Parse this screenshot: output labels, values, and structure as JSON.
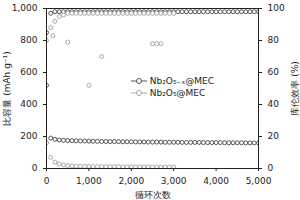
{
  "chart_data": {
    "type": "scatter",
    "xlabel": "循环次数",
    "ylabel": "比容量 (mAh g⁻¹)",
    "y2label": "库伦效率 (%)",
    "xlim": [
      0,
      5000
    ],
    "xticks": [
      0,
      1000,
      2000,
      3000,
      4000,
      5000
    ],
    "ylim": [
      0,
      1000
    ],
    "yticks": [
      0,
      200,
      400,
      600,
      800,
      1000
    ],
    "y2lim": [
      0,
      100
    ],
    "y2ticks": [
      0,
      20,
      40,
      60,
      80,
      100
    ],
    "legend": "center",
    "series": [
      {
        "name": "Nb₂O₅₋ₓ@MEC",
        "color": "#444444",
        "marker": "circle",
        "show_in_legend": true,
        "x": [
          1,
          100,
          200,
          300,
          400,
          500,
          600,
          700,
          800,
          900,
          1000,
          1100,
          1200,
          1300,
          1400,
          1500,
          1600,
          1700,
          1800,
          1900,
          2000,
          2100,
          2200,
          2300,
          2400,
          2500,
          2600,
          2700,
          2800,
          2900,
          3000,
          3100,
          3200,
          3300,
          3400,
          3500,
          3600,
          3700,
          3800,
          3900,
          4000,
          4100,
          4200,
          4300,
          4400,
          4500,
          4600,
          4700,
          4800,
          4900,
          5000
        ],
        "values": [
          520,
          190,
          182,
          178,
          176,
          175,
          174,
          173,
          172,
          172,
          171,
          170,
          170,
          169,
          169,
          168,
          168,
          168,
          167,
          167,
          167,
          166,
          166,
          166,
          165,
          165,
          165,
          165,
          164,
          164,
          164,
          164,
          163,
          163,
          163,
          163,
          163,
          162,
          162,
          162,
          162,
          162,
          161,
          161,
          161,
          161,
          161,
          160,
          160,
          160,
          160
        ]
      },
      {
        "name": "Nb₂O₅@MEC",
        "color": "#a0a0a0",
        "marker": "circle",
        "x": [
          1,
          100,
          200,
          300,
          400,
          500,
          600,
          700,
          800,
          900,
          1000,
          1100,
          1200,
          1300,
          1400,
          1500,
          1600,
          1700,
          1800,
          1900,
          2000,
          2100,
          2200,
          2300,
          2400,
          2500,
          2600,
          2700,
          2800,
          2900,
          3000
        ],
        "values": [
          160,
          70,
          40,
          28,
          22,
          18,
          16,
          15,
          14,
          13,
          13,
          12,
          12,
          12,
          11,
          11,
          11,
          11,
          10,
          10,
          10,
          10,
          10,
          10,
          10,
          9,
          9,
          9,
          9,
          9,
          9
        ]
      },
      {
        "name": "Nb₂O₅₋ₓ@MEC",
        "color": "#444444",
        "marker": "circle",
        "axis": "y2",
        "x": [
          1,
          100,
          200,
          300,
          400,
          500,
          600,
          700,
          800,
          900,
          1000,
          1100,
          1200,
          1300,
          1400,
          1500,
          1600,
          1700,
          1800,
          1900,
          2000,
          2100,
          2200,
          2300,
          2400,
          2500,
          2600,
          2700,
          2800,
          2900,
          3000,
          3100,
          3200,
          3300,
          3400,
          3500,
          3600,
          3700,
          3800,
          3900,
          4000,
          4100,
          4200,
          4300,
          4400,
          4500,
          4600,
          4700,
          4800,
          4900,
          5000
        ],
        "values": [
          85,
          97,
          98,
          98,
          98,
          98,
          98,
          98,
          98,
          98,
          98,
          98,
          98,
          98,
          98,
          98,
          98,
          98,
          98,
          98,
          98,
          98,
          98,
          98,
          98,
          98,
          98,
          98,
          98,
          98,
          98,
          98,
          98,
          98,
          98,
          98,
          98,
          98,
          98,
          98,
          98,
          98,
          98,
          98,
          98,
          98,
          98,
          98,
          98,
          98,
          98
        ]
      },
      {
        "name": "Nb₂O₅@MEC",
        "color": "#a0a0a0",
        "marker": "circle",
        "axis": "y2",
        "x": [
          1,
          100,
          200,
          300,
          400,
          500,
          600,
          700,
          800,
          900,
          1000,
          1100,
          1200,
          1300,
          1400,
          1500,
          1600,
          1700,
          1800,
          1900,
          2000,
          2100,
          2200,
          2300,
          2400,
          2500,
          2600,
          2700,
          2800,
          2900,
          3000,
          150,
          500,
          1000,
          1300,
          2500,
          2600,
          2700
        ],
        "values": [
          80,
          88,
          92,
          95,
          96,
          97,
          97,
          97,
          97,
          97,
          97,
          97,
          97,
          97,
          97,
          97,
          97,
          97,
          97,
          97,
          97,
          97,
          97,
          97,
          97,
          97,
          97,
          97,
          97,
          97,
          97,
          83,
          79,
          52,
          70,
          78,
          78,
          78
        ]
      }
    ]
  }
}
